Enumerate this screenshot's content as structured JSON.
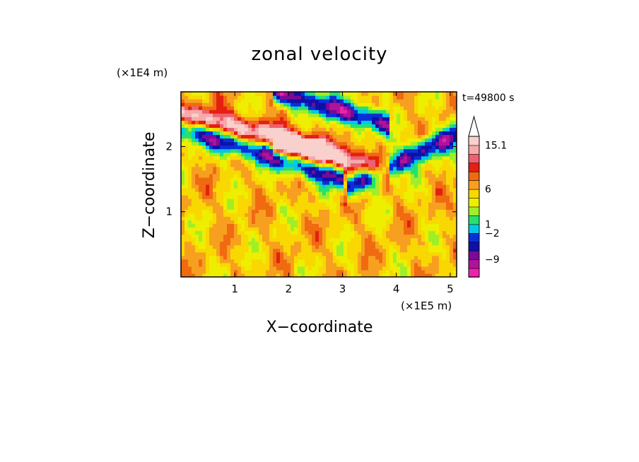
{
  "chart_data": {
    "type": "heatmap",
    "title": "zonal velocity",
    "xlabel": "X−coordinate",
    "ylabel": "Z−coordinate",
    "x_scale_label": "(×1E5 m)",
    "y_scale_label": "(×1E4 m)",
    "time_label": "t=49800 s",
    "xlim": [
      0,
      5.12
    ],
    "ylim": [
      0,
      2.84
    ],
    "x_ticks": [
      1,
      2,
      3,
      4,
      5
    ],
    "y_ticks": [
      1,
      2
    ],
    "colorbar": {
      "colors": [
        "#ee22aa",
        "#b0139b",
        "#7a0a97",
        "#1010a8",
        "#0830d8",
        "#00c8e8",
        "#28e070",
        "#a0ee28",
        "#eeee00",
        "#f8d800",
        "#f7a020",
        "#f06a10",
        "#e42010",
        "#ee6070",
        "#f7aaaa",
        "#f8d0cc"
      ],
      "labeled_levels": [
        "15.1",
        "6",
        "1",
        "−2",
        "−9"
      ],
      "extends_above": true
    },
    "features": [
      {
        "note": "band",
        "sign": "negative",
        "z_start": 2.3,
        "z_end": 1.6,
        "x_start": 0,
        "x_end": 2.7
      },
      {
        "note": "band",
        "sign": "positive",
        "z_start": 2.5,
        "z_end": 2.0,
        "x_start": 0,
        "x_end": 2.4
      },
      {
        "note": "band",
        "sign": "positive",
        "z_start": 2.0,
        "z_end": 1.7,
        "x_start": 2.0,
        "x_end": 3.6
      },
      {
        "note": "band",
        "sign": "negative",
        "z_start": 1.5,
        "z_end": 2.2,
        "x_start": 3.4,
        "x_end": 5.12
      },
      {
        "note": "band",
        "sign": "negative",
        "z_start": 2.8,
        "z_end": 2.4,
        "x_start": 2.0,
        "x_end": 3.6
      }
    ]
  }
}
